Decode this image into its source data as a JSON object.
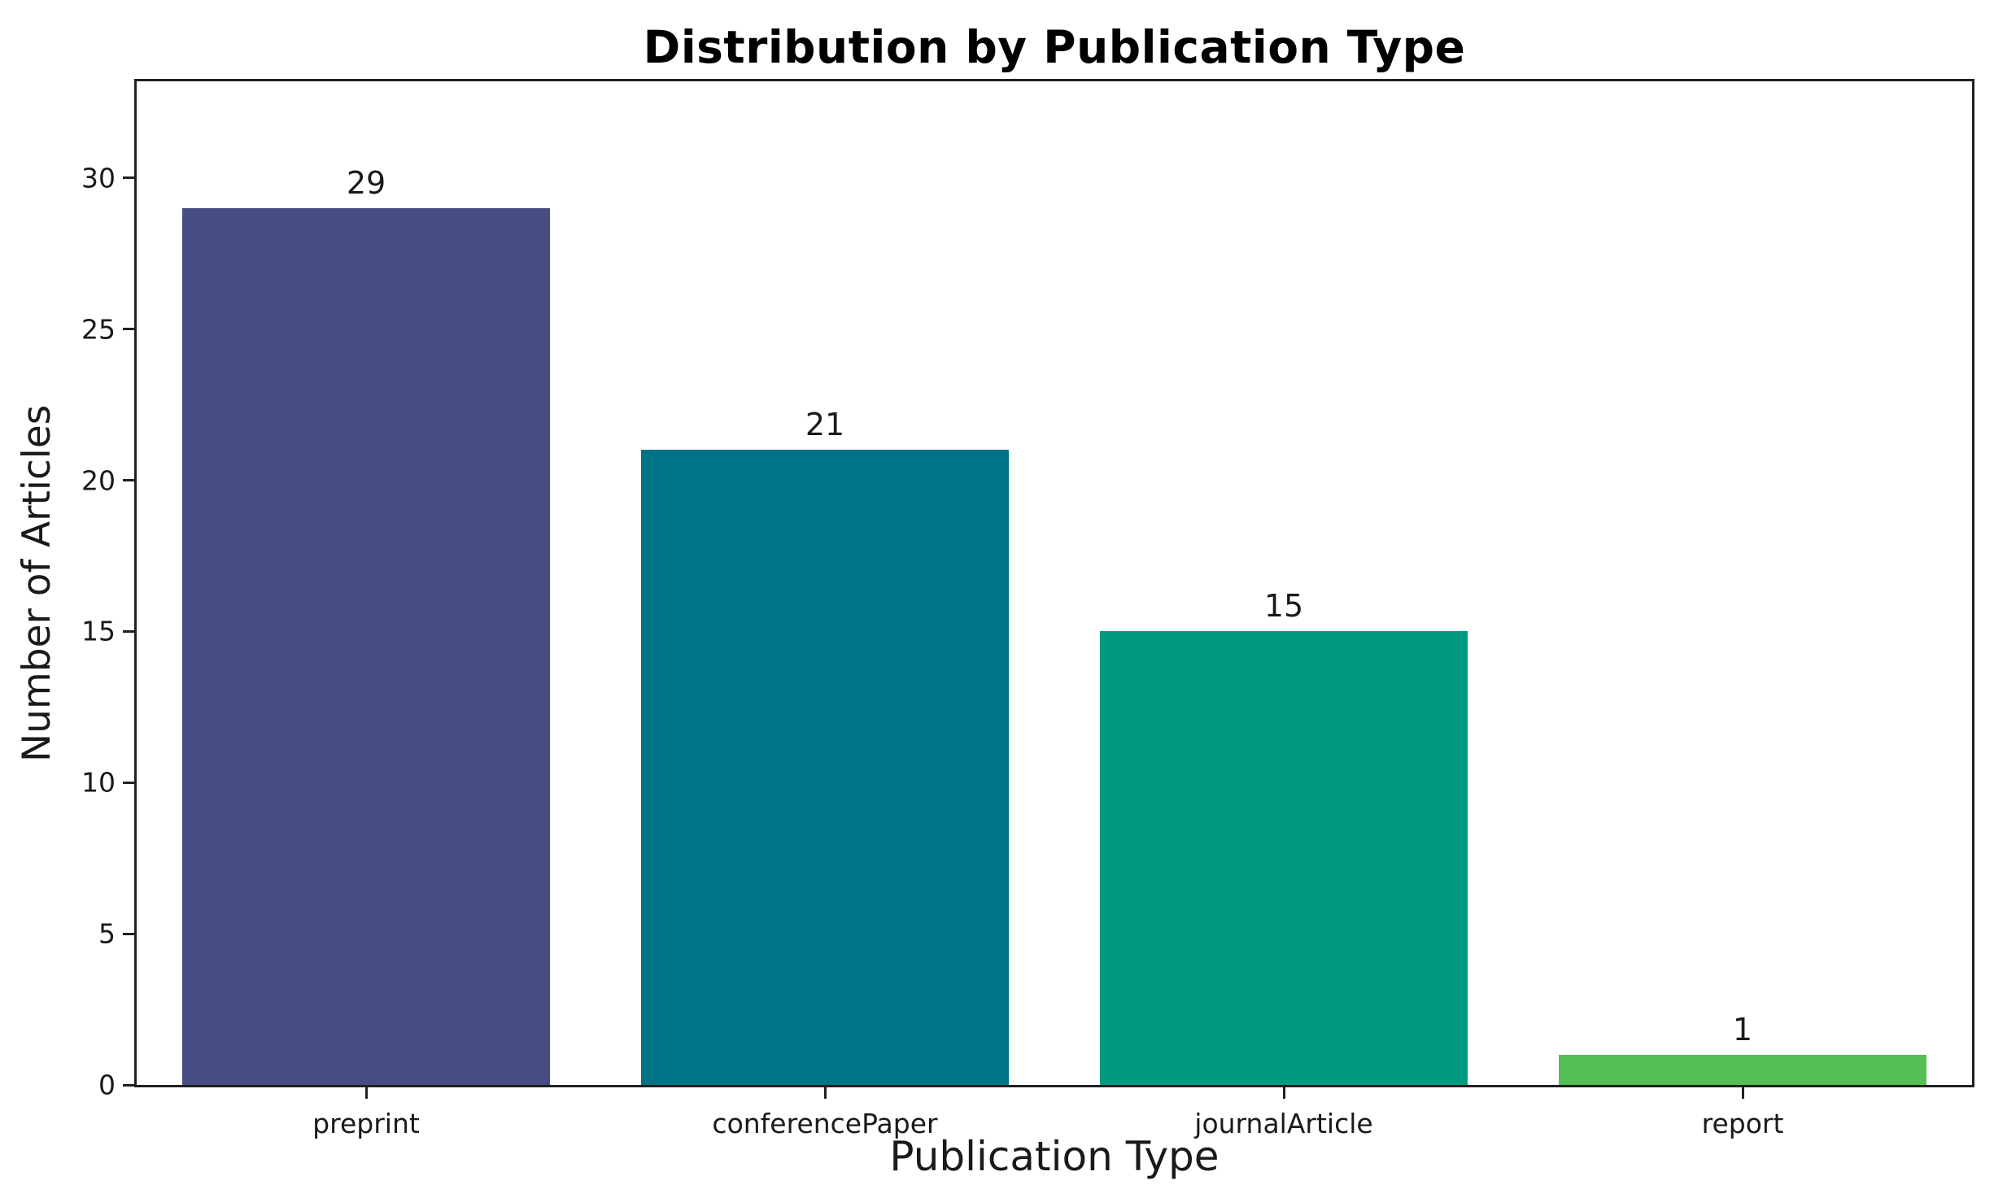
{
  "figure": {
    "title": "Distribution by Publication Type",
    "xlabel": "Publication Type",
    "ylabel": "Number of Articles"
  },
  "chart_data": {
    "type": "bar",
    "title": "Distribution by Publication Type",
    "xlabel": "Publication Type",
    "ylabel": "Number of Articles",
    "categories": [
      "preprint",
      "conferencePaper",
      "journalArticle",
      "report"
    ],
    "values": [
      29,
      21,
      15,
      1
    ],
    "bar_labels": [
      "29",
      "21",
      "15",
      "1"
    ],
    "bar_colors": [
      "#474C82",
      "#007387",
      "#009A7E",
      "#55BE55"
    ],
    "yticks": [
      0,
      5,
      10,
      15,
      20,
      25,
      30
    ],
    "ylim": [
      0,
      33.2
    ],
    "grid": false,
    "legend_position": "none",
    "bar_width_fraction": 0.8,
    "frame_color": "#212121"
  }
}
